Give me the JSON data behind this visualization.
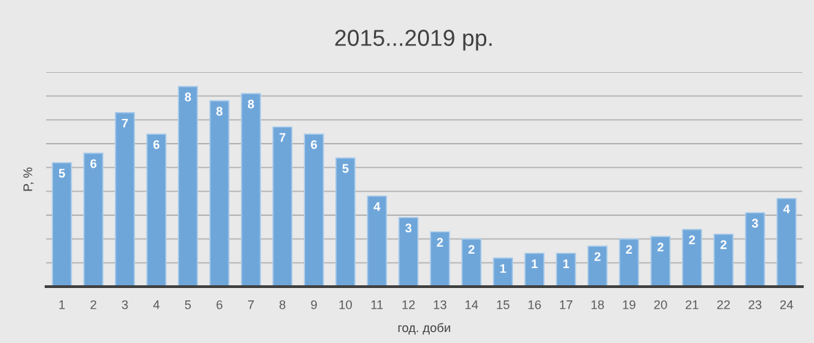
{
  "chart_data": {
    "type": "bar",
    "title": "2015...2019 рр.",
    "xlabel": "год. доби",
    "ylabel": "P, %",
    "categories": [
      "1",
      "2",
      "3",
      "4",
      "5",
      "6",
      "7",
      "8",
      "9",
      "10",
      "11",
      "12",
      "13",
      "14",
      "15",
      "16",
      "17",
      "18",
      "19",
      "20",
      "21",
      "22",
      "23",
      "24"
    ],
    "values": [
      5.2,
      5.6,
      7.3,
      6.4,
      8.4,
      7.8,
      8.1,
      6.7,
      6.4,
      5.4,
      3.8,
      2.9,
      2.3,
      2.0,
      1.2,
      1.4,
      1.4,
      1.7,
      2.0,
      2.1,
      2.4,
      2.2,
      3.1,
      3.7
    ],
    "value_labels": [
      "5",
      "6",
      "7",
      "6",
      "8",
      "8",
      "8",
      "7",
      "6",
      "5",
      "4",
      "3",
      "2",
      "2",
      "1",
      "1",
      "1",
      "2",
      "2",
      "2",
      "2",
      "2",
      "3",
      "4"
    ],
    "color": "#6fa6da",
    "ylim": [
      0,
      9
    ],
    "yticks": [
      {
        "value": 0,
        "label": null
      },
      {
        "value": 1,
        "label": null
      },
      {
        "value": 2,
        "label": null
      },
      {
        "value": 3,
        "label": null
      },
      {
        "value": 4,
        "label": null
      },
      {
        "value": 5,
        "label": null
      },
      {
        "value": 6,
        "label": null
      },
      {
        "value": 7,
        "label": null
      },
      {
        "value": 8,
        "label": null
      },
      {
        "value": 9,
        "label": null
      }
    ],
    "grid": "y",
    "tick_labels": "x"
  }
}
